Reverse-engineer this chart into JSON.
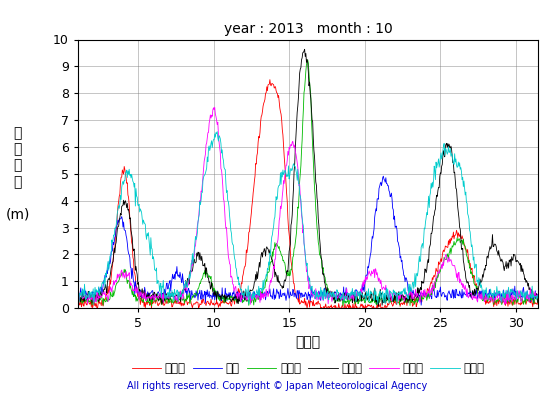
{
  "title": "year : 2013   month : 10",
  "xlabel": "（日）",
  "ylabel_chars": [
    "有",
    "義",
    "波",
    "高",
    "",
    "(m)"
  ],
  "xlim": [
    1,
    31.5
  ],
  "ylim": [
    0,
    10
  ],
  "xticks": [
    5,
    10,
    15,
    20,
    25,
    30
  ],
  "yticks": [
    0,
    1,
    2,
    3,
    4,
    5,
    6,
    7,
    8,
    9,
    10
  ],
  "series_names": [
    "上ノ国",
    "唐桑",
    "石廀崎",
    "経ヶ岖",
    "生月島",
    "屋久島"
  ],
  "series_colors": [
    "#ff0000",
    "#0000ff",
    "#00bb00",
    "#000000",
    "#ff00ff",
    "#00cccc"
  ],
  "copyright": "All rights reserved. Copyright © Japan Meteorological Agency",
  "background_color": "#ffffff",
  "n_points": 744
}
